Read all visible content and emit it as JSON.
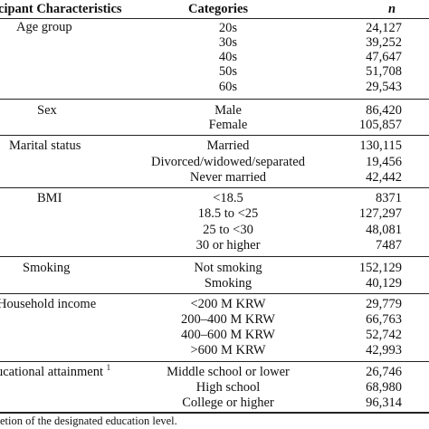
{
  "header": {
    "characteristics": "icipant Characteristics",
    "categories": "Categories",
    "n": "n"
  },
  "groups": [
    {
      "label": "Age group",
      "rows": [
        {
          "category": "20s",
          "n": "24,127"
        },
        {
          "category": "30s",
          "n": "39,252"
        },
        {
          "category": "40s",
          "n": "47,647"
        },
        {
          "category": "50s",
          "n": "51,708"
        },
        {
          "category": "60s",
          "n": "29,543"
        }
      ]
    },
    {
      "label": "Sex",
      "rows": [
        {
          "category": "Male",
          "n": "86,420"
        },
        {
          "category": "Female",
          "n": "105,857"
        }
      ]
    },
    {
      "label": "Marital status",
      "rows": [
        {
          "category": "Married",
          "n": "130,115"
        },
        {
          "category": "Divorced/widowed/separated",
          "n": "19,456"
        },
        {
          "category": "Never married",
          "n": "42,442"
        }
      ]
    },
    {
      "label": "BMI",
      "rows": [
        {
          "category": "<18.5",
          "n": "8371"
        },
        {
          "category": "18.5 to <25",
          "n": "127,297"
        },
        {
          "category": "25 to <30",
          "n": "48,081"
        },
        {
          "category": "30 or higher",
          "n": "7487"
        }
      ]
    },
    {
      "label": "Smoking",
      "rows": [
        {
          "category": "Not smoking",
          "n": "152,129"
        },
        {
          "category": "Smoking",
          "n": "40,129"
        }
      ]
    },
    {
      "label": "Household income",
      "rows": [
        {
          "category": "<200 M KRW",
          "n": "29,779"
        },
        {
          "category": "200–400 M KRW",
          "n": "66,763"
        },
        {
          "category": "400–600 M KRW",
          "n": "52,742"
        },
        {
          "category": ">600 M KRW",
          "n": "42,993"
        }
      ]
    },
    {
      "label": "ucational attainment",
      "label_sup": "1",
      "rows": [
        {
          "category": "Middle school or lower",
          "n": "26,746"
        },
        {
          "category": "High school",
          "n": "68,980"
        },
        {
          "category": "College or higher",
          "n": "96,314"
        }
      ]
    }
  ],
  "footnote": "etion of the designated education level."
}
